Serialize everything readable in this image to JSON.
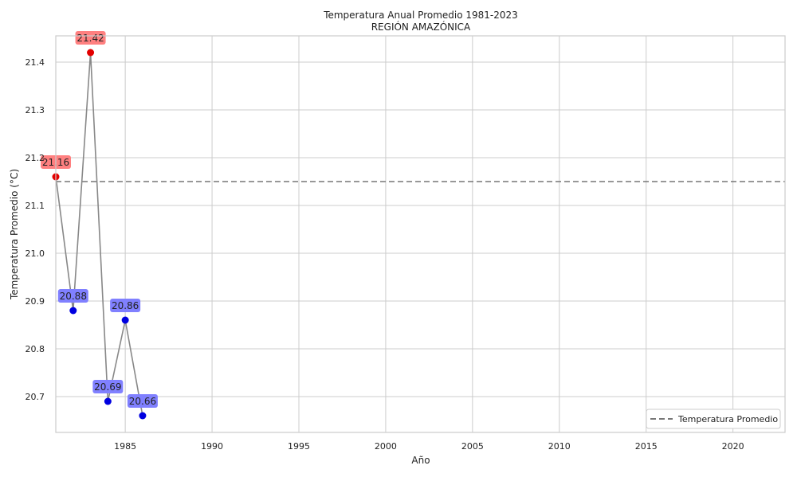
{
  "chart_data": {
    "type": "line",
    "title": "Temperatura Anual Promedio 1981-2023",
    "subtitle": "REGIÓN AMAZÓNICA",
    "xlabel": "Año",
    "ylabel": "Temperatura Promedio (°C)",
    "xlim": [
      1981,
      2023
    ],
    "ylim": [
      20.625,
      21.455
    ],
    "x_ticks": [
      1985,
      1990,
      1995,
      2000,
      2005,
      2010,
      2015,
      2020
    ],
    "y_ticks": [
      20.7,
      20.8,
      20.9,
      21.0,
      21.1,
      21.2,
      21.3,
      21.4
    ],
    "grid": true,
    "legend_position": "lower-right",
    "points": [
      {
        "x": 1981,
        "y": 21.16,
        "label": "21.16",
        "above_mean": true
      },
      {
        "x": 1982,
        "y": 20.88,
        "label": "20.88",
        "above_mean": false
      },
      {
        "x": 1983,
        "y": 21.42,
        "label": "21.42",
        "above_mean": true
      },
      {
        "x": 1984,
        "y": 20.69,
        "label": "20.69",
        "above_mean": false
      },
      {
        "x": 1985,
        "y": 20.86,
        "label": "20.86",
        "above_mean": false
      },
      {
        "x": 1986,
        "y": 20.66,
        "label": "20.66",
        "above_mean": false
      }
    ],
    "mean": {
      "name": "Temperatura Promedio",
      "value": 21.15
    },
    "colors": {
      "line": "#888888",
      "above": "#e30000",
      "below": "#0000e0",
      "above_box": "#ff8080",
      "below_box": "#8080ff",
      "mean_line": "#777777",
      "grid": "#cccccc",
      "axes": "#cccccc"
    }
  }
}
